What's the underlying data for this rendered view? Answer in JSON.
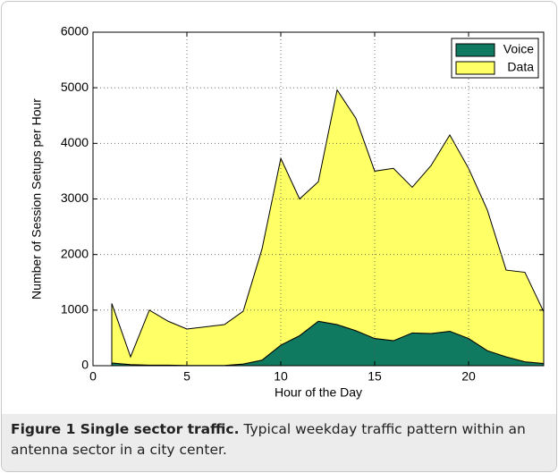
{
  "chart_data": {
    "type": "stacked_area",
    "x_label": "Hour of the Day",
    "y_label": "Number of Session Setups per Hour",
    "x": [
      1,
      2,
      3,
      4,
      5,
      6,
      7,
      8,
      9,
      10,
      11,
      12,
      13,
      14,
      15,
      16,
      17,
      18,
      19,
      20,
      21,
      22,
      23,
      24
    ],
    "series": [
      {
        "name": "Voice",
        "color": "#0f7a5f",
        "values": [
          50,
          20,
          10,
          10,
          5,
          5,
          5,
          30,
          100,
          370,
          540,
          800,
          740,
          630,
          490,
          450,
          590,
          580,
          620,
          490,
          270,
          160,
          70,
          40
        ]
      },
      {
        "name": "Data",
        "color": "#ffff66",
        "values": [
          1070,
          140,
          990,
          790,
          655,
          695,
          735,
          950,
          2000,
          3360,
          2460,
          2510,
          4220,
          3820,
          3010,
          3100,
          2620,
          3020,
          3530,
          3060,
          2530,
          1560,
          1610,
          930
        ]
      }
    ],
    "xlim": [
      0,
      24
    ],
    "xticks": [
      0,
      5,
      10,
      15,
      20
    ],
    "ylim": [
      0,
      6000
    ],
    "yticks": [
      0,
      1000,
      2000,
      3000,
      4000,
      5000,
      6000
    ],
    "grid": true,
    "legend": "northeast"
  },
  "caption": {
    "label": "Figure 1",
    "title": "Single sector traffic.",
    "text": "Typical weekday traffic pattern within an antenna sector in a city center."
  }
}
